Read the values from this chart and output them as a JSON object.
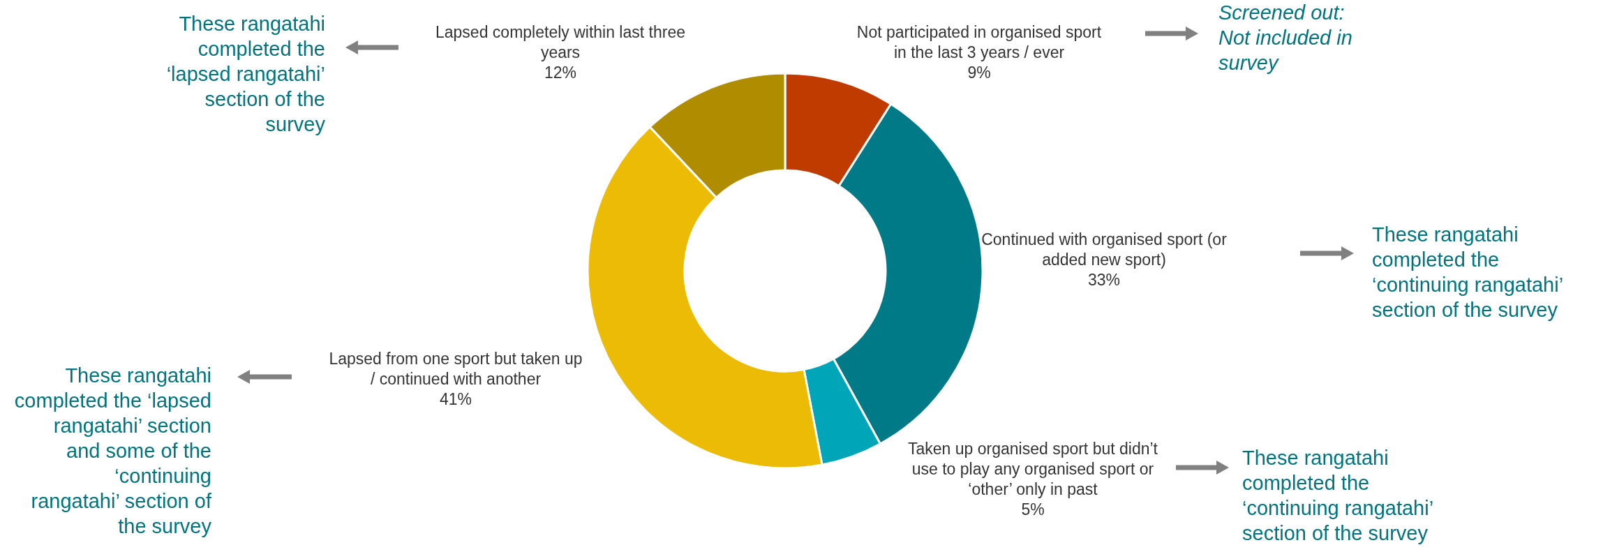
{
  "chart_data": {
    "type": "donut",
    "categories": [
      "Not participated in organised sport in the last 3 years / ever",
      "Continued with organised sport (or added new sport)",
      "Taken up organised sport but didn’t use to play any organised sport or ‘other’ only in past",
      "Lapsed from one sport but taken up / continued with another",
      "Lapsed completely within last three years"
    ],
    "values": [
      9,
      33,
      5,
      41,
      12
    ],
    "colors": [
      "#bf3b00",
      "#007a87",
      "#00a5b8",
      "#ebbb05",
      "#af8c00"
    ],
    "value_labels": [
      "9%",
      "33%",
      "5%",
      "41%",
      "12%"
    ],
    "annotations": [
      "These rangatahi completed the ‘lapsed rangatahi’ section of the survey",
      "Screened out: Not included in survey",
      "These rangatahi completed the ‘continuing rangatahi’ section of the survey",
      "These rangatahi completed the ‘lapsed rangatahi’ section and some of the ‘continuing rangatahi’ section of the survey",
      "These rangatahi completed the ‘continuing rangatahi’ section of the survey"
    ]
  }
}
